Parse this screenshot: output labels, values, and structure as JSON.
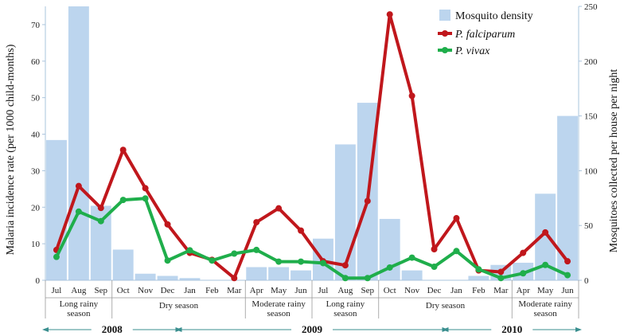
{
  "chart_data": {
    "type": "bar+line",
    "months": [
      "Jul",
      "Aug",
      "Sep",
      "Oct",
      "Nov",
      "Dec",
      "Jan",
      "Feb",
      "Mar",
      "Apr",
      "May",
      "Jun",
      "Jul",
      "Aug",
      "Sep",
      "Oct",
      "Nov",
      "Dec",
      "Jan",
      "Feb",
      "Mar",
      "Apr",
      "May",
      "Jun"
    ],
    "seasons": [
      {
        "label": [
          "Long rainy",
          "season"
        ],
        "start": 0,
        "end": 2
      },
      {
        "label": [
          "Dry season"
        ],
        "start": 3,
        "end": 8
      },
      {
        "label": [
          "Moderate rainy",
          "season"
        ],
        "start": 9,
        "end": 11
      },
      {
        "label": [
          "Long rainy",
          "season"
        ],
        "start": 12,
        "end": 14
      },
      {
        "label": [
          "Dry season"
        ],
        "start": 15,
        "end": 20
      },
      {
        "label": [
          "Moderate rainy",
          "season"
        ],
        "start": 21,
        "end": 23
      }
    ],
    "years": [
      {
        "label": "2008",
        "start": 0,
        "end": 5
      },
      {
        "label": "2009",
        "start": 6,
        "end": 17
      },
      {
        "label": "2010",
        "start": 18,
        "end": 23
      }
    ],
    "y_left": {
      "label": "Malaria incidence rate  (per 1000 child-months)",
      "min": 0,
      "max": 75,
      "ticks": [
        0,
        10,
        20,
        30,
        40,
        50,
        60,
        70
      ]
    },
    "y_right": {
      "label": "Mosquitoes collected per house per night",
      "min": 0,
      "max": 250,
      "ticks": [
        0,
        50,
        100,
        150,
        200,
        250
      ]
    },
    "bar_series": {
      "name": "Mosquito density",
      "color": "#bcd5ee",
      "axis": "right",
      "values": [
        128,
        250,
        68,
        28,
        6,
        4,
        2,
        0,
        0,
        12,
        12,
        9,
        38,
        124,
        162,
        56,
        9,
        0,
        0,
        4,
        14,
        16,
        79,
        150
      ]
    },
    "line_series": [
      {
        "name": "P. falciparum",
        "color": "#c0171c",
        "axis": "left",
        "values": [
          8.3,
          25.8,
          19.8,
          35.7,
          25.2,
          15.3,
          7.5,
          5.6,
          0.6,
          15.9,
          19.7,
          13.6,
          5.2,
          4.1,
          21.7,
          72.8,
          50.5,
          8.5,
          17.0,
          2.7,
          2.3,
          7.5,
          13.1,
          5.2
        ]
      },
      {
        "name": "P. vivax",
        "color": "#1fae4b",
        "axis": "left",
        "values": [
          6.4,
          18.8,
          16.2,
          22.0,
          22.4,
          5.4,
          8.2,
          5.4,
          7.3,
          8.3,
          5.1,
          5.1,
          4.7,
          0.6,
          0.6,
          3.5,
          6.2,
          3.7,
          8.0,
          3.0,
          0.6,
          1.9,
          4.2,
          1.4
        ]
      }
    ],
    "legend": [
      "Mosquito density",
      "P. falciparum",
      "P. vivax"
    ]
  }
}
